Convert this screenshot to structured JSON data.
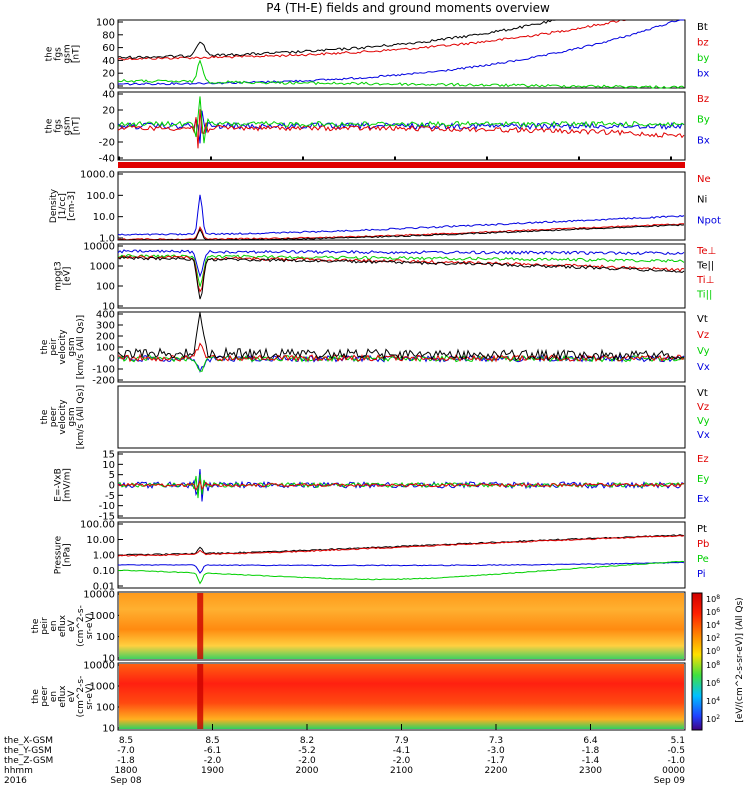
{
  "title": "P4 (TH-E) fields and ground moments overview",
  "colors": {
    "black": "#000000",
    "red": "#e00000",
    "green": "#00d000",
    "blue": "#0000e0",
    "axis": "#000000"
  },
  "panels": [
    {
      "id": "fgs-mag",
      "ylabel": [
        "the",
        "fgs",
        "gsm",
        "[nT]"
      ],
      "ticks": [
        "100",
        "80",
        "60",
        "40",
        "20",
        "0"
      ],
      "legend": [
        {
          "text": "Bt",
          "color": "black"
        },
        {
          "text": "bz",
          "color": "red"
        },
        {
          "text": "by",
          "color": "green"
        },
        {
          "text": "bx",
          "color": "blue"
        }
      ]
    },
    {
      "id": "fgs-gsm",
      "ylabel": [
        "the",
        "fgs",
        "gsm",
        "[nT]"
      ],
      "ticks": [
        "40",
        "20",
        "0",
        "-20",
        "-40"
      ],
      "legend": [
        {
          "text": "Bz",
          "color": "red"
        },
        {
          "text": "By",
          "color": "green"
        },
        {
          "text": "Bx",
          "color": "blue"
        }
      ]
    },
    {
      "id": "density",
      "ylabel": [
        "Density",
        "[1/cc]",
        "[cm-3]"
      ],
      "ticks": [
        "1000.0",
        "100.0",
        "10.0",
        "1.0"
      ],
      "legend": [
        {
          "text": "Ne",
          "color": "red"
        },
        {
          "text": "Ni",
          "color": "black"
        },
        {
          "text": "Npot",
          "color": "blue"
        }
      ]
    },
    {
      "id": "temperature",
      "ylabel": [
        "mpgt3",
        "[eV]"
      ],
      "ticks": [
        "10000",
        "1000",
        "100",
        "10"
      ],
      "legend": [
        {
          "text": "Te⊥",
          "color": "red"
        },
        {
          "text": "Te||",
          "color": "black"
        },
        {
          "text": "Ti⊥",
          "color": "red"
        },
        {
          "text": "Ti||",
          "color": "green"
        }
      ]
    },
    {
      "id": "peir-velocity",
      "ylabel": [
        "the",
        "peir",
        "velocity",
        "gsm",
        "[km/s (All Qs)]"
      ],
      "ticks": [
        "400",
        "300",
        "200",
        "100",
        "0",
        "-100",
        "-200"
      ],
      "legend": [
        {
          "text": "Vt",
          "color": "black"
        },
        {
          "text": "Vz",
          "color": "red"
        },
        {
          "text": "Vy",
          "color": "green"
        },
        {
          "text": "Vx",
          "color": "blue"
        }
      ]
    },
    {
      "id": "peer-velocity",
      "ylabel": [
        "the",
        "peer",
        "velocity",
        "gsm",
        "[km/s (All Qs)]"
      ],
      "ticks": [],
      "legend": [
        {
          "text": "Vt",
          "color": "black"
        },
        {
          "text": "Vz",
          "color": "red"
        },
        {
          "text": "Vy",
          "color": "green"
        },
        {
          "text": "Vx",
          "color": "blue"
        }
      ]
    },
    {
      "id": "efield",
      "ylabel": [
        "E=-VxB",
        "[mV/m]"
      ],
      "ticks": [
        "15",
        "10",
        "5",
        "0",
        "-5",
        "-10",
        "-15"
      ],
      "legend": [
        {
          "text": "Ez",
          "color": "red"
        },
        {
          "text": "Ey",
          "color": "green"
        },
        {
          "text": "Ex",
          "color": "blue"
        }
      ]
    },
    {
      "id": "pressure",
      "ylabel": [
        "Pressure",
        "[nPa]"
      ],
      "ticks": [
        "100.00",
        "10.00",
        "1.00",
        "0.10",
        "0.01"
      ],
      "legend": [
        {
          "text": "Pt",
          "color": "black"
        },
        {
          "text": "Pb",
          "color": "red"
        },
        {
          "text": "Pe",
          "color": "green"
        },
        {
          "text": "Pi",
          "color": "blue"
        }
      ]
    },
    {
      "id": "peir-eflux",
      "ylabel": [
        "the",
        "peir",
        "en",
        "eflux",
        "eV",
        "(cm^2-s-",
        "sr-eV)"
      ],
      "ticks": [
        "10000",
        "1000",
        "100",
        "10"
      ],
      "legend": []
    },
    {
      "id": "peer-eflux",
      "ylabel": [
        "the",
        "peer",
        "en",
        "eflux",
        "eV",
        "(cm^2-s-",
        "sr-eV)"
      ],
      "ticks": [
        "10000",
        "1000",
        "100",
        "10"
      ],
      "legend": []
    }
  ],
  "colorbar": {
    "label": "[eV/(cm^2-s-sr-eV)] (All Qs)",
    "ticks_top": [
      "10^8",
      "10^6",
      "10^4",
      "10^2",
      "10^0"
    ],
    "ticks_bottom": [
      "10^8",
      "10^6",
      "10^4",
      "10^2"
    ]
  },
  "xaxis": {
    "row_labels": [
      "the_X-GSM",
      "the_Y-GSM",
      "the_Z-GSM",
      "hhmm",
      "2016"
    ],
    "columns": [
      {
        "x": "8.5",
        "y": "-7.0",
        "z": "-1.8",
        "t": "1800",
        "d": "Sep 08"
      },
      {
        "x": "8.5",
        "y": "-6.1",
        "z": "-2.0",
        "t": "1900",
        "d": ""
      },
      {
        "x": "8.2",
        "y": "-5.2",
        "z": "-2.0",
        "t": "2000",
        "d": ""
      },
      {
        "x": "7.9",
        "y": "-4.1",
        "z": "-2.0",
        "t": "2100",
        "d": ""
      },
      {
        "x": "7.3",
        "y": "-3.0",
        "z": "-1.7",
        "t": "2200",
        "d": ""
      },
      {
        "x": "6.4",
        "y": "-1.8",
        "z": "-1.4",
        "t": "2300",
        "d": ""
      },
      {
        "x": "5.1",
        "y": "-0.5",
        "z": "-1.0",
        "t": "0000",
        "d": "Sep 09"
      }
    ]
  },
  "chart_data": {
    "type": "line",
    "title": "P4 (TH-E) fields and ground moments overview",
    "x_hhmm": [
      "1800",
      "1900",
      "2000",
      "2100",
      "2200",
      "2300",
      "0000"
    ],
    "series": [
      {
        "name": "Bt",
        "values": [
          45,
          55,
          60,
          65,
          75,
          90,
          105
        ]
      },
      {
        "name": "bz",
        "values": [
          42,
          50,
          55,
          60,
          72,
          88,
          100
        ]
      },
      {
        "name": "by",
        "values": [
          10,
          8,
          6,
          4,
          3,
          1,
          0
        ]
      },
      {
        "name": "bx",
        "values": [
          8,
          15,
          20,
          25,
          35,
          55,
          105
        ]
      }
    ]
  }
}
